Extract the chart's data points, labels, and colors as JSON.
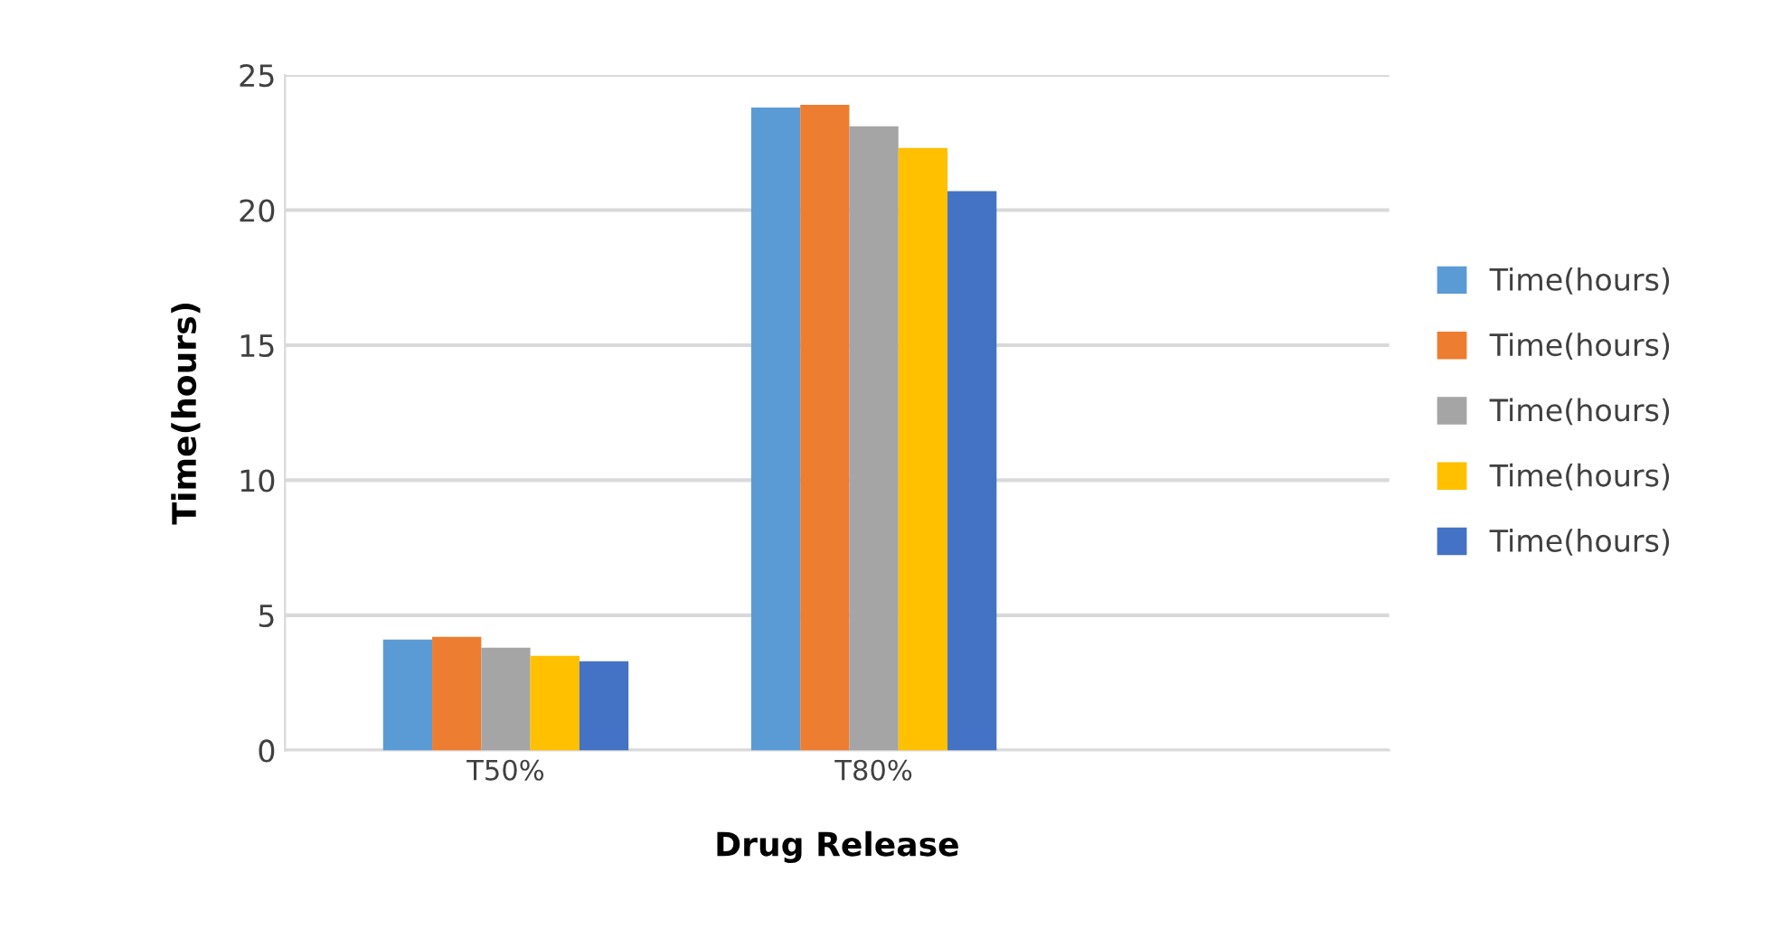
{
  "chart_data": {
    "type": "bar",
    "xlabel": "Drug Release",
    "ylabel": "Time(hours)",
    "categories": [
      "T50%",
      "T80%"
    ],
    "series": [
      {
        "name": "Time(hours)",
        "color": "#5b9bd5",
        "values": [
          4.1,
          23.8
        ]
      },
      {
        "name": "Time(hours)",
        "color": "#ed7d31",
        "values": [
          4.2,
          23.9
        ]
      },
      {
        "name": "Time(hours)",
        "color": "#a5a5a5",
        "values": [
          3.8,
          23.1
        ]
      },
      {
        "name": "Time(hours)",
        "color": "#ffc000",
        "values": [
          3.5,
          22.3
        ]
      },
      {
        "name": "Time(hours)",
        "color": "#4472c4",
        "values": [
          3.3,
          20.7
        ]
      }
    ],
    "ylim": [
      0,
      25
    ],
    "yticks": [
      0,
      5,
      10,
      15,
      20,
      25
    ],
    "grid": "y",
    "legend": "right"
  }
}
